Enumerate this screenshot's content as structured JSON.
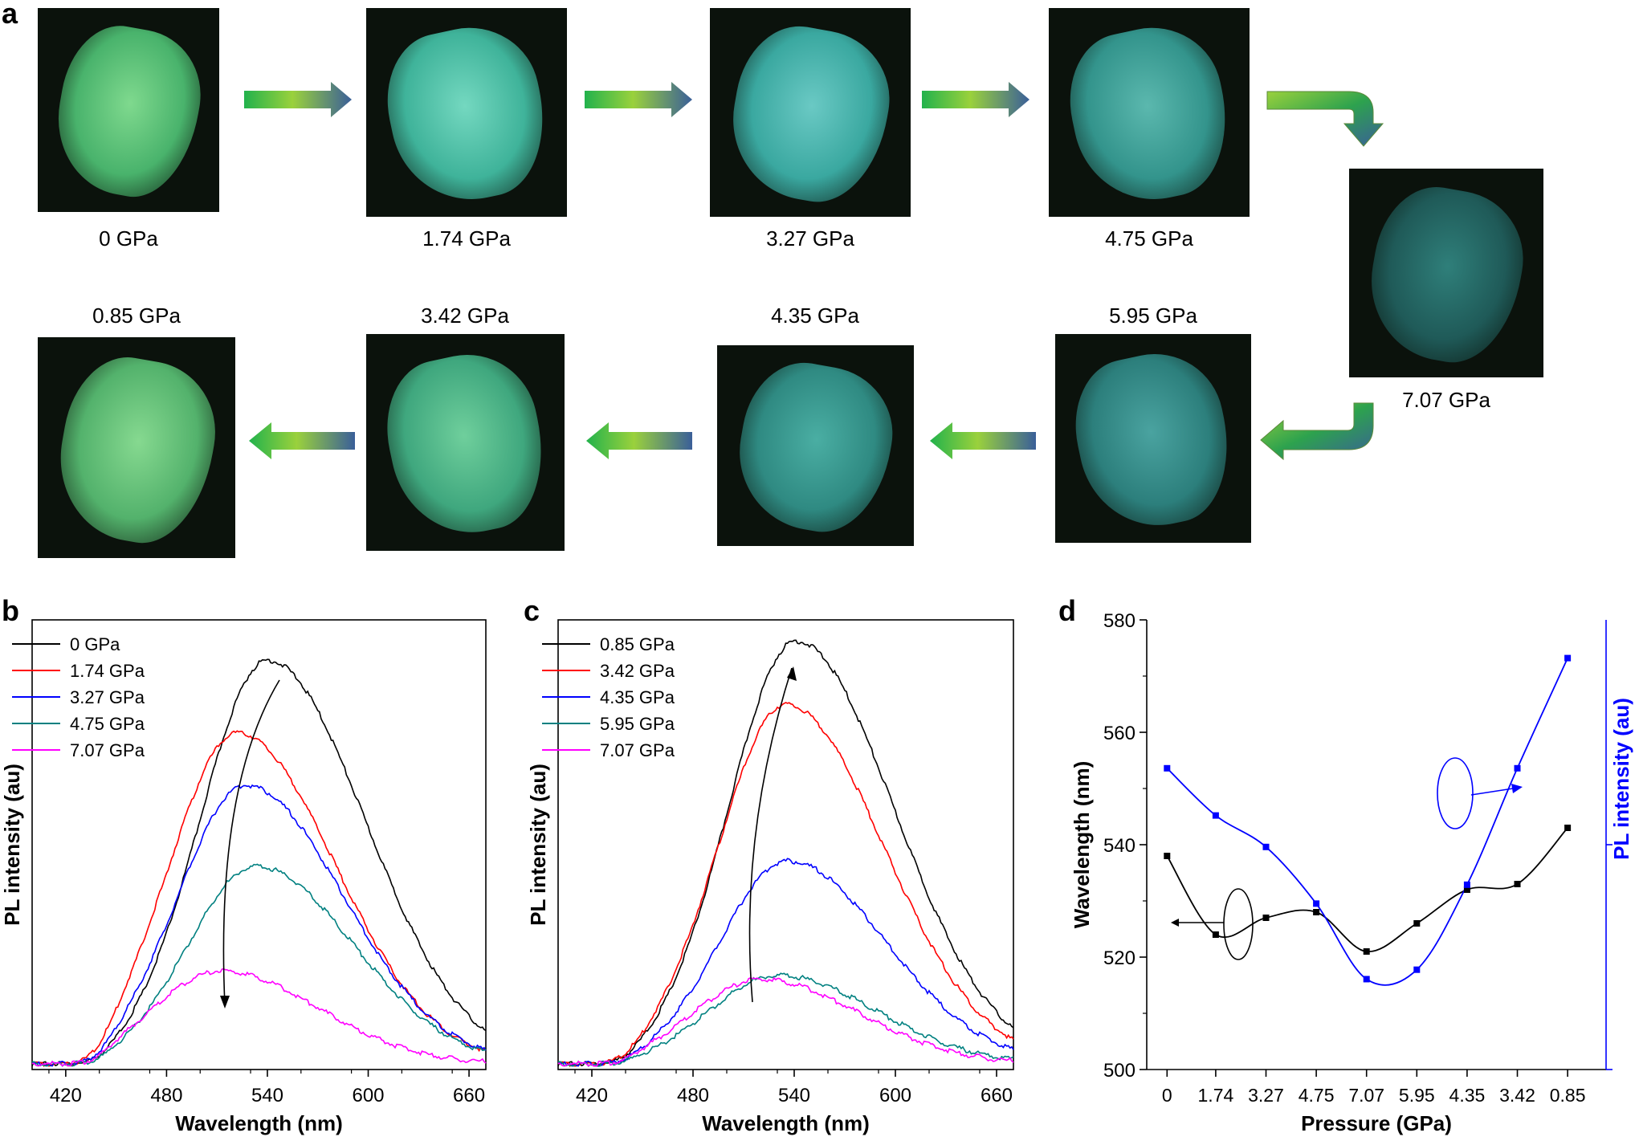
{
  "panel_labels": {
    "a": "a",
    "b": "b",
    "c": "c",
    "d": "d"
  },
  "photos": [
    {
      "label": "0 GPa",
      "tint": "#49b36c",
      "glow": "#7fd98e"
    },
    {
      "label": "1.74 GPa",
      "tint": "#3fb39a",
      "glow": "#74d8c0"
    },
    {
      "label": "3.27 GPa",
      "tint": "#3aa8a0",
      "glow": "#6ac9c4"
    },
    {
      "label": "4.75 GPa",
      "tint": "#33948c",
      "glow": "#5bb8ae"
    },
    {
      "label": "7.07 GPa",
      "tint": "#1f5a58",
      "glow": "#2f7f7a"
    },
    {
      "label": "5.95 GPa",
      "tint": "#2c7f7c",
      "glow": "#4aa3a0"
    },
    {
      "label": "4.35 GPa",
      "tint": "#2f8a82",
      "glow": "#4aaea3"
    },
    {
      "label": "3.42 GPa",
      "tint": "#3fa77e",
      "glow": "#6fcf9c"
    },
    {
      "label": "0.85 GPa",
      "tint": "#53b26c",
      "glow": "#86d990"
    }
  ],
  "arrow_colors": {
    "start": "#22b24c",
    "mid": "#9ad13c",
    "end": "#3a5f99"
  },
  "chart_data": [
    {
      "id": "b",
      "type": "line",
      "xlabel": "Wavelength (nm)",
      "ylabel": "PL intensity (au)",
      "xlim": [
        400,
        670
      ],
      "ylim": [
        0,
        1.1
      ],
      "xticks": [
        420,
        480,
        540,
        600,
        660
      ],
      "series": [
        {
          "name": "0 GPa",
          "color": "#000000",
          "peak": 540,
          "amp": 1.0
        },
        {
          "name": "1.74 GPa",
          "color": "#ff0000",
          "peak": 522,
          "amp": 0.82
        },
        {
          "name": "3.27 GPa",
          "color": "#0000ff",
          "peak": 527,
          "amp": 0.69
        },
        {
          "name": "4.75 GPa",
          "color": "#008080",
          "peak": 533,
          "amp": 0.49
        },
        {
          "name": "7.07 GPa",
          "color": "#ff00ff",
          "peak": 512,
          "amp": 0.23
        }
      ]
    },
    {
      "id": "c",
      "type": "line",
      "xlabel": "Wavelength (nm)",
      "ylabel": "PL intensity (au)",
      "xlim": [
        400,
        670
      ],
      "ylim": [
        0,
        1.05
      ],
      "xticks": [
        420,
        480,
        540,
        600,
        660
      ],
      "series": [
        {
          "name": "0.85 GPa",
          "color": "#000000",
          "peak": 541,
          "amp": 1.0
        },
        {
          "name": "3.42 GPa",
          "color": "#ff0000",
          "peak": 535,
          "amp": 0.85
        },
        {
          "name": "4.35 GPa",
          "color": "#0000ff",
          "peak": 536,
          "amp": 0.48
        },
        {
          "name": "5.95 GPa",
          "color": "#008080",
          "peak": 530,
          "amp": 0.21
        },
        {
          "name": "7.07 GPa",
          "color": "#ff00ff",
          "peak": 520,
          "amp": 0.2
        }
      ]
    },
    {
      "id": "d",
      "type": "scatter",
      "xlabel": "Pressure (GPa)",
      "ylabel": "Wavelength (nm)",
      "ylabel_right": "PL intensity (au)",
      "categories": [
        "0",
        "1.74",
        "3.27",
        "4.75",
        "7.07",
        "5.95",
        "4.35",
        "3.42",
        "0.85"
      ],
      "ylim": [
        500,
        580
      ],
      "yticks": [
        500,
        520,
        540,
        560,
        580
      ],
      "series": [
        {
          "name": "Wavelength",
          "color": "#000000",
          "axis": "left",
          "values": [
            538,
            524,
            527,
            528,
            521,
            526,
            532,
            533,
            543
          ]
        },
        {
          "name": "PL intensity",
          "color": "#0000ff",
          "axis": "right",
          "values": [
            0.6,
            0.45,
            0.35,
            0.17,
            -0.07,
            -0.04,
            0.23,
            0.6,
            0.95
          ]
        }
      ]
    }
  ]
}
